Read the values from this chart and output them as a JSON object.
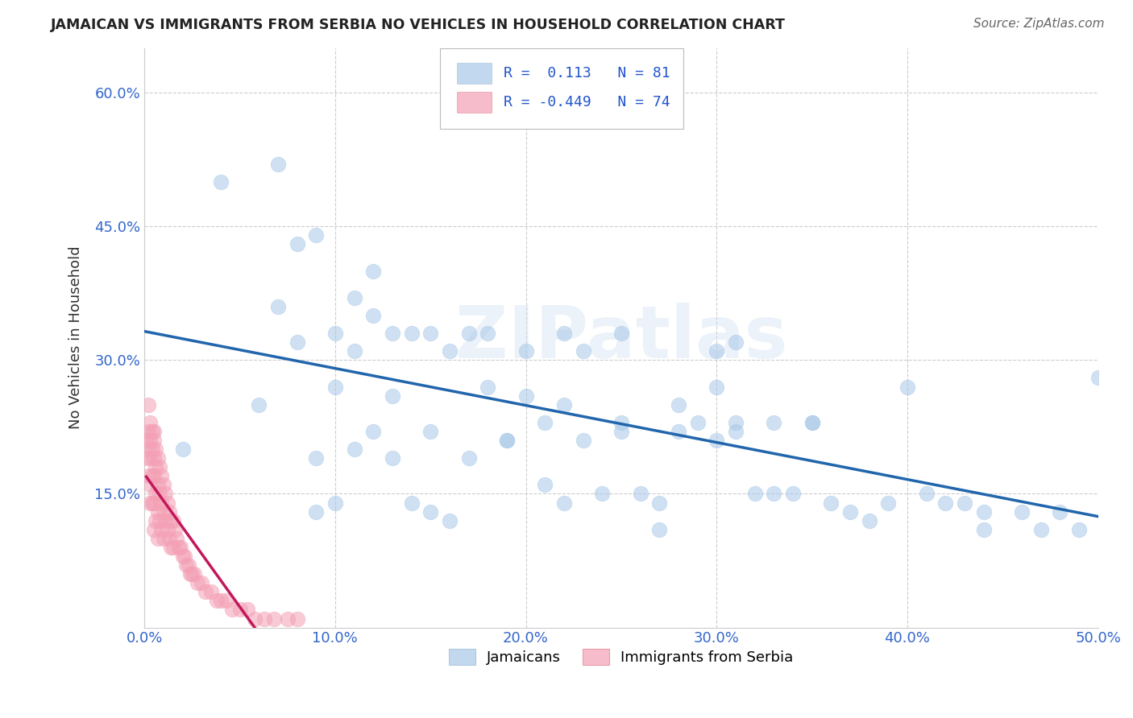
{
  "title": "JAMAICAN VS IMMIGRANTS FROM SERBIA NO VEHICLES IN HOUSEHOLD CORRELATION CHART",
  "source": "Source: ZipAtlas.com",
  "ylabel": "No Vehicles in Household",
  "xlim": [
    0.0,
    0.5
  ],
  "ylim": [
    0.0,
    0.65
  ],
  "xtick_labels": [
    "0.0%",
    "10.0%",
    "20.0%",
    "30.0%",
    "40.0%",
    "50.0%"
  ],
  "xtick_vals": [
    0.0,
    0.1,
    0.2,
    0.3,
    0.4,
    0.5
  ],
  "ytick_labels": [
    "15.0%",
    "30.0%",
    "45.0%",
    "60.0%"
  ],
  "ytick_vals": [
    0.15,
    0.3,
    0.45,
    0.6
  ],
  "grid_color": "#cccccc",
  "background_color": "#ffffff",
  "jamaican_color": "#a8c8e8",
  "serbia_color": "#f4a0b5",
  "jamaican_line_color": "#2166ac",
  "serbia_line_color": "#c2185b",
  "R_jamaican": 0.113,
  "N_jamaican": 81,
  "R_serbia": -0.449,
  "N_serbia": 74,
  "legend_label_1": "Jamaicans",
  "legend_label_2": "Immigrants from Serbia",
  "jamaican_x": [
    0.02,
    0.04,
    0.06,
    0.07,
    0.08,
    0.08,
    0.09,
    0.09,
    0.1,
    0.1,
    0.11,
    0.11,
    0.11,
    0.12,
    0.12,
    0.12,
    0.13,
    0.13,
    0.14,
    0.14,
    0.15,
    0.15,
    0.16,
    0.17,
    0.17,
    0.18,
    0.18,
    0.19,
    0.2,
    0.2,
    0.21,
    0.21,
    0.22,
    0.22,
    0.23,
    0.23,
    0.24,
    0.25,
    0.25,
    0.26,
    0.27,
    0.27,
    0.28,
    0.29,
    0.3,
    0.3,
    0.3,
    0.31,
    0.31,
    0.32,
    0.33,
    0.33,
    0.34,
    0.35,
    0.36,
    0.37,
    0.38,
    0.4,
    0.41,
    0.42,
    0.43,
    0.44,
    0.46,
    0.47,
    0.48,
    0.49,
    0.5,
    0.07,
    0.09,
    0.1,
    0.13,
    0.15,
    0.16,
    0.19,
    0.22,
    0.25,
    0.28,
    0.31,
    0.35,
    0.39,
    0.44
  ],
  "jamaican_y": [
    0.2,
    0.5,
    0.25,
    0.52,
    0.43,
    0.32,
    0.44,
    0.19,
    0.33,
    0.27,
    0.37,
    0.31,
    0.2,
    0.4,
    0.35,
    0.22,
    0.33,
    0.26,
    0.33,
    0.14,
    0.33,
    0.22,
    0.31,
    0.33,
    0.19,
    0.33,
    0.27,
    0.21,
    0.31,
    0.26,
    0.23,
    0.16,
    0.33,
    0.25,
    0.31,
    0.21,
    0.15,
    0.33,
    0.23,
    0.15,
    0.14,
    0.11,
    0.25,
    0.23,
    0.31,
    0.27,
    0.21,
    0.32,
    0.23,
    0.15,
    0.23,
    0.15,
    0.15,
    0.23,
    0.14,
    0.13,
    0.12,
    0.27,
    0.15,
    0.14,
    0.14,
    0.13,
    0.13,
    0.11,
    0.13,
    0.11,
    0.28,
    0.36,
    0.13,
    0.14,
    0.19,
    0.13,
    0.12,
    0.21,
    0.14,
    0.22,
    0.22,
    0.22,
    0.23,
    0.14,
    0.11
  ],
  "serbia_x": [
    0.001,
    0.001,
    0.002,
    0.002,
    0.002,
    0.003,
    0.003,
    0.003,
    0.003,
    0.003,
    0.004,
    0.004,
    0.004,
    0.004,
    0.005,
    0.005,
    0.005,
    0.005,
    0.005,
    0.006,
    0.006,
    0.006,
    0.006,
    0.007,
    0.007,
    0.007,
    0.007,
    0.008,
    0.008,
    0.008,
    0.009,
    0.009,
    0.009,
    0.01,
    0.01,
    0.01,
    0.011,
    0.011,
    0.012,
    0.012,
    0.013,
    0.013,
    0.014,
    0.014,
    0.015,
    0.015,
    0.016,
    0.017,
    0.018,
    0.019,
    0.02,
    0.021,
    0.022,
    0.023,
    0.024,
    0.025,
    0.026,
    0.028,
    0.03,
    0.032,
    0.035,
    0.038,
    0.04,
    0.043,
    0.046,
    0.05,
    0.054,
    0.058,
    0.063,
    0.068,
    0.075,
    0.08,
    0.002,
    0.005
  ],
  "serbia_y": [
    0.21,
    0.19,
    0.22,
    0.2,
    0.17,
    0.23,
    0.21,
    0.19,
    0.16,
    0.14,
    0.22,
    0.2,
    0.17,
    0.14,
    0.22,
    0.19,
    0.17,
    0.14,
    0.11,
    0.2,
    0.18,
    0.15,
    0.12,
    0.19,
    0.16,
    0.13,
    0.1,
    0.18,
    0.15,
    0.12,
    0.17,
    0.14,
    0.11,
    0.16,
    0.13,
    0.1,
    0.15,
    0.12,
    0.14,
    0.11,
    0.13,
    0.1,
    0.12,
    0.09,
    0.12,
    0.09,
    0.11,
    0.1,
    0.09,
    0.09,
    0.08,
    0.08,
    0.07,
    0.07,
    0.06,
    0.06,
    0.06,
    0.05,
    0.05,
    0.04,
    0.04,
    0.03,
    0.03,
    0.03,
    0.02,
    0.02,
    0.02,
    0.01,
    0.01,
    0.01,
    0.01,
    0.01,
    0.25,
    0.21
  ]
}
